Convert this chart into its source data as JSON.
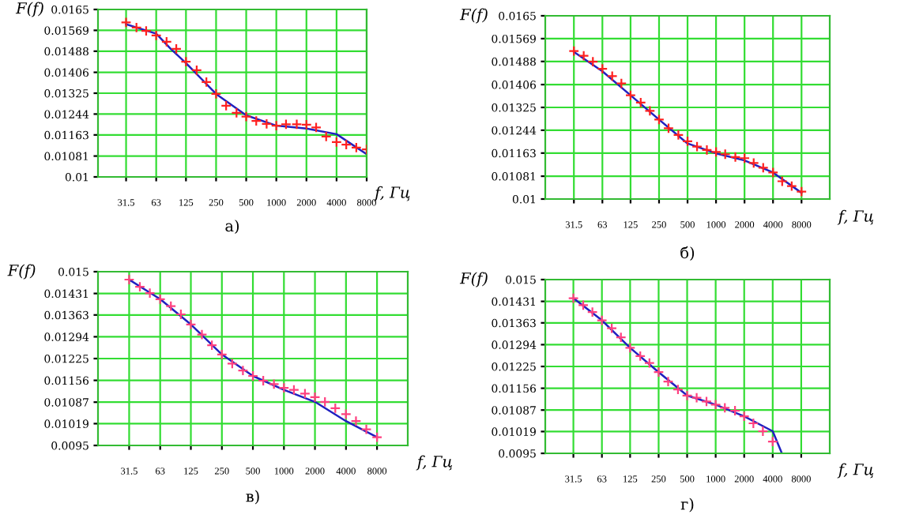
{
  "chart_data": [
    {
      "type": "scatter",
      "title": "а)",
      "xlabel": "f, Гц",
      "ylabel": "F(f)",
      "log": "x",
      "grid": true,
      "xlim": [
        16.5,
        8000
      ],
      "xticks": [
        31.5,
        63,
        125,
        250,
        500,
        1000,
        2000,
        4000,
        8000
      ],
      "ylim": [
        0.01,
        0.0165
      ],
      "yticks": [
        0.01,
        0.01081,
        0.01163,
        0.01244,
        0.01325,
        0.01406,
        0.01488,
        0.01569,
        0.0165
      ],
      "series": [
        {
          "marker": "cross",
          "color": "#ff2020",
          "x": [
            31.5,
            40,
            50,
            63,
            80,
            100,
            125,
            160,
            200,
            250,
            315,
            400,
            500,
            630,
            800,
            1000,
            1250,
            1600,
            2000,
            2500,
            3150,
            4000,
            5000,
            6300,
            8000
          ],
          "values": [
            0.016,
            0.0158,
            0.01567,
            0.01549,
            0.01525,
            0.01497,
            0.01447,
            0.01414,
            0.01368,
            0.01322,
            0.01276,
            0.01249,
            0.01234,
            0.01217,
            0.01206,
            0.01199,
            0.01204,
            0.01204,
            0.01203,
            0.01192,
            0.01157,
            0.01135,
            0.01125,
            0.01114,
            0.01107
          ]
        },
        {
          "type": "line",
          "color": "#2020c0",
          "x": [
            31.5,
            63,
            88,
            125,
            250,
            500,
            1000,
            2000,
            4000,
            8000
          ],
          "values": [
            0.01593,
            0.01556,
            0.01497,
            0.01442,
            0.01322,
            0.01239,
            0.01199,
            0.01188,
            0.01166,
            0.01088
          ]
        }
      ]
    },
    {
      "type": "scatter",
      "title": "б)",
      "xlabel": "f, Гц",
      "ylabel": "F(f)",
      "log": "x",
      "grid": true,
      "xlim": [
        15.7,
        15900
      ],
      "xticks": [
        31.5,
        63,
        125,
        250,
        500,
        1000,
        2000,
        4000,
        8000
      ],
      "ylim": [
        0.01,
        0.0165
      ],
      "yticks": [
        0.01,
        0.01081,
        0.01163,
        0.01244,
        0.01325,
        0.01406,
        0.01488,
        0.01569,
        0.0165
      ],
      "series": [
        {
          "marker": "cross",
          "color": "#ff2020",
          "x": [
            31.5,
            40,
            50,
            63,
            80,
            100,
            125,
            160,
            200,
            250,
            315,
            400,
            500,
            630,
            800,
            1000,
            1250,
            1600,
            2000,
            2500,
            3150,
            4000,
            5000,
            6300,
            8000
          ],
          "values": [
            0.01525,
            0.01508,
            0.01487,
            0.01462,
            0.01436,
            0.0141,
            0.01368,
            0.01342,
            0.01313,
            0.01282,
            0.01251,
            0.01227,
            0.01205,
            0.01186,
            0.01174,
            0.01167,
            0.01159,
            0.01149,
            0.01145,
            0.01128,
            0.01111,
            0.01094,
            0.01063,
            0.01046,
            0.01026
          ]
        },
        {
          "type": "line",
          "color": "#2020c0",
          "x": [
            31.5,
            63,
            125,
            250,
            500,
            1000,
            2000,
            4000,
            8000
          ],
          "values": [
            0.01522,
            0.01453,
            0.01368,
            0.01282,
            0.01197,
            0.01162,
            0.01137,
            0.01094,
            0.01022
          ]
        }
      ]
    },
    {
      "type": "scatter",
      "title": "в)",
      "xlabel": "f, Гц",
      "ylabel": "F(f)",
      "log": "x",
      "grid": true,
      "xlim": [
        15.7,
        15900
      ],
      "xticks": [
        31.5,
        63,
        125,
        250,
        500,
        1000,
        2000,
        4000,
        8000
      ],
      "ylim": [
        0.0095,
        0.015
      ],
      "yticks": [
        0.0095,
        0.01019,
        0.01087,
        0.01156,
        0.01225,
        0.01294,
        0.01363,
        0.01431,
        0.015
      ],
      "series": [
        {
          "marker": "cross",
          "color": "#ff4080",
          "x": [
            31.5,
            40,
            50,
            63,
            80,
            100,
            125,
            160,
            200,
            250,
            315,
            400,
            500,
            630,
            800,
            1000,
            1250,
            1600,
            2000,
            2500,
            3150,
            4000,
            5000,
            6300,
            8000
          ],
          "values": [
            0.01475,
            0.01452,
            0.01432,
            0.01413,
            0.01391,
            0.01365,
            0.01333,
            0.01301,
            0.01267,
            0.01238,
            0.01209,
            0.01187,
            0.0117,
            0.01155,
            0.01144,
            0.01132,
            0.01126,
            0.01114,
            0.01103,
            0.01088,
            0.01068,
            0.01049,
            0.01027,
            0.01001,
            0.00976
          ]
        },
        {
          "type": "line",
          "color": "#2020c0",
          "x": [
            31.5,
            63,
            125,
            250,
            500,
            1000,
            2000,
            4000,
            8000
          ],
          "values": [
            0.01475,
            0.01413,
            0.01333,
            0.01238,
            0.0117,
            0.01126,
            0.01088,
            0.01027,
            0.00976
          ]
        }
      ]
    },
    {
      "type": "scatter",
      "title": "г)",
      "xlabel": "f, Гц",
      "ylabel": "F(f)",
      "log": "x",
      "grid": true,
      "xlim": [
        15.9,
        16000
      ],
      "xticks": [
        31.5,
        63,
        125,
        250,
        500,
        1000,
        2000,
        4000,
        8000
      ],
      "ylim": [
        0.0095,
        0.015
      ],
      "yticks": [
        0.0095,
        0.01019,
        0.01087,
        0.01156,
        0.01225,
        0.01294,
        0.01363,
        0.01431,
        0.015
      ],
      "series": [
        {
          "marker": "cross",
          "color": "#ff4080",
          "x": [
            31.5,
            40,
            50,
            63,
            80,
            100,
            125,
            160,
            200,
            250,
            315,
            400,
            500,
            630,
            800,
            1000,
            1250,
            1600,
            2000,
            2500,
            3150,
            4000
          ],
          "values": [
            0.01441,
            0.01419,
            0.01397,
            0.01371,
            0.01346,
            0.01317,
            0.01284,
            0.01258,
            0.01236,
            0.01207,
            0.01177,
            0.01152,
            0.01133,
            0.01126,
            0.01114,
            0.01104,
            0.01094,
            0.01085,
            0.01067,
            0.01045,
            0.0102,
            0.00987
          ]
        },
        {
          "type": "line",
          "color": "#2020c0",
          "x": [
            31.5,
            63,
            125,
            250,
            500,
            1000,
            2000,
            4000,
            5000
          ],
          "values": [
            0.01441,
            0.01371,
            0.01284,
            0.01207,
            0.01133,
            0.01104,
            0.01067,
            0.0102,
            0.0095
          ]
        }
      ]
    }
  ]
}
